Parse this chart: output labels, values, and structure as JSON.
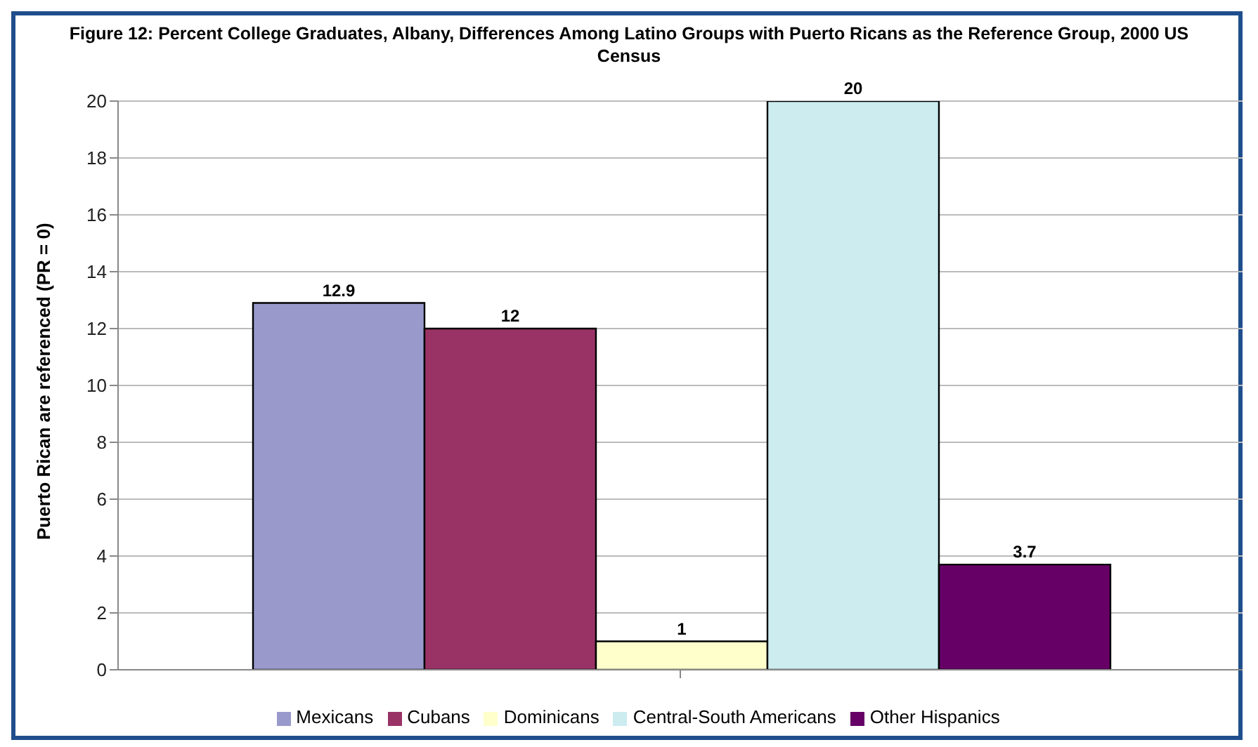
{
  "chart_data": {
    "type": "bar",
    "title": "Figure 12: Percent College Graduates, Albany, Differences Among Latino Groups with Puerto Ricans as the Reference Group, 2000 US Census",
    "ylabel": "Puerto Rican are referenced (PR = 0)",
    "categories": [
      null
    ],
    "series": [
      {
        "name": "Mexicans",
        "color": "#9999cc",
        "values": [
          12.9
        ]
      },
      {
        "name": "Cubans",
        "color": "#993366",
        "values": [
          12
        ]
      },
      {
        "name": "Dominicans",
        "color": "#ffffcc",
        "values": [
          1
        ]
      },
      {
        "name": "Central-South Americans",
        "color": "#ccecf0",
        "values": [
          20
        ]
      },
      {
        "name": "Other Hispanics",
        "color": "#660066",
        "values": [
          3.7
        ]
      }
    ],
    "ylim": [
      0,
      20
    ],
    "yticks": [
      0,
      2,
      4,
      6,
      8,
      10,
      12,
      14,
      16,
      18,
      20
    ],
    "grid": "y",
    "legend": "bottom",
    "data_labels": true
  }
}
